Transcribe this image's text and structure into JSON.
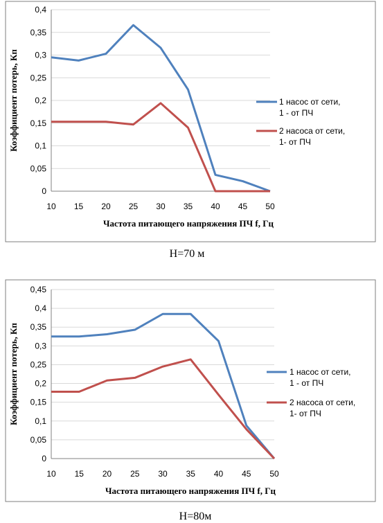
{
  "chart_data": [
    {
      "type": "line",
      "x": [
        10,
        15,
        20,
        25,
        30,
        35,
        40,
        45,
        50
      ],
      "xlabel": "Частота питающего напряжения ПЧ f, Гц",
      "ylabel": "Коэффициент потерь, Кп",
      "ylim": [
        0,
        0.4
      ],
      "yticks": [
        "0",
        "0,05",
        "0,1",
        "0,15",
        "0,2",
        "0,25",
        "0,3",
        "0,35",
        "0,4"
      ],
      "xticks": [
        "10",
        "15",
        "20",
        "25",
        "30",
        "35",
        "40",
        "45",
        "50"
      ],
      "grid": true,
      "legend_position": "right",
      "caption": "H=70 м",
      "series": [
        {
          "name": [
            "1 насос от сети,",
            "1 - от ПЧ"
          ],
          "color": "#4f81bd",
          "values": [
            0.295,
            0.288,
            0.303,
            0.366,
            0.316,
            0.224,
            0.036,
            0.022,
            0.0
          ]
        },
        {
          "name": [
            "2 насоса от сети,",
            "1- от ПЧ"
          ],
          "color": "#c0504d",
          "values": [
            0.153,
            0.153,
            0.153,
            0.147,
            0.194,
            0.14,
            0.0,
            0.0,
            0.0
          ]
        }
      ]
    },
    {
      "type": "line",
      "x": [
        10,
        15,
        20,
        25,
        30,
        35,
        40,
        45,
        50
      ],
      "xlabel": "Частота питающего напряжения ПЧ f, Гц",
      "ylabel": "Коэффициент потерь, Кп",
      "ylim": [
        0,
        0.45
      ],
      "yticks": [
        "0",
        "0,05",
        "0,1",
        "0,15",
        "0,2",
        "0,25",
        "0,3",
        "0,35",
        "0,4",
        "0,45"
      ],
      "xticks": [
        "10",
        "15",
        "20",
        "25",
        "30",
        "35",
        "40",
        "45",
        "50"
      ],
      "grid": true,
      "legend_position": "right",
      "caption": "H=80м",
      "series": [
        {
          "name": [
            "1 насос от сети,",
            "1 - от ПЧ"
          ],
          "color": "#4f81bd",
          "values": [
            0.325,
            0.325,
            0.331,
            0.343,
            0.385,
            0.385,
            0.313,
            0.088,
            0.0
          ]
        },
        {
          "name": [
            "2 насоса от сети,",
            "1- от ПЧ"
          ],
          "color": "#c0504d",
          "values": [
            0.178,
            0.178,
            0.208,
            0.215,
            0.245,
            0.264,
            0.17,
            0.078,
            0.0
          ]
        }
      ]
    }
  ]
}
